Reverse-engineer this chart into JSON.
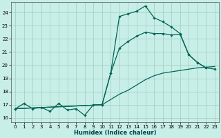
{
  "xlabel": "Humidex (Indice chaleur)",
  "bg_color": "#c8eee8",
  "grid_color": "#a0ccbb",
  "line_color": "#006655",
  "xlim": [
    -0.5,
    23.5
  ],
  "ylim": [
    15.7,
    24.8
  ],
  "xticks": [
    0,
    1,
    2,
    3,
    4,
    5,
    6,
    7,
    8,
    9,
    10,
    11,
    12,
    13,
    14,
    15,
    16,
    17,
    18,
    19,
    20,
    21,
    22,
    23
  ],
  "yticks": [
    16,
    17,
    18,
    19,
    20,
    21,
    22,
    23,
    24
  ],
  "curve1_x": [
    0,
    1,
    2,
    3,
    4,
    5,
    6,
    7,
    8,
    9,
    10,
    11,
    12,
    13,
    14,
    15,
    16,
    17,
    18,
    19,
    20,
    21,
    22
  ],
  "curve1_y": [
    16.7,
    17.1,
    16.7,
    16.8,
    16.5,
    17.1,
    16.6,
    16.7,
    16.2,
    17.0,
    17.0,
    19.4,
    23.7,
    23.9,
    24.1,
    24.5,
    23.6,
    23.3,
    22.9,
    22.4,
    20.8,
    20.2,
    19.8
  ],
  "curve2_x": [
    0,
    10,
    11,
    12,
    13,
    14,
    15,
    16,
    17,
    18,
    19,
    20,
    21,
    22,
    23
  ],
  "curve2_y": [
    16.7,
    17.0,
    19.4,
    21.3,
    21.8,
    22.2,
    22.5,
    22.4,
    22.4,
    22.3,
    22.35,
    20.8,
    20.2,
    19.8,
    19.7
  ],
  "curve3_x": [
    0,
    10,
    11,
    12,
    13,
    14,
    15,
    16,
    17,
    18,
    19,
    20,
    21,
    22,
    23
  ],
  "curve3_y": [
    16.7,
    17.0,
    17.4,
    17.8,
    18.1,
    18.5,
    18.9,
    19.2,
    19.4,
    19.5,
    19.6,
    19.7,
    19.8,
    19.85,
    19.9
  ]
}
